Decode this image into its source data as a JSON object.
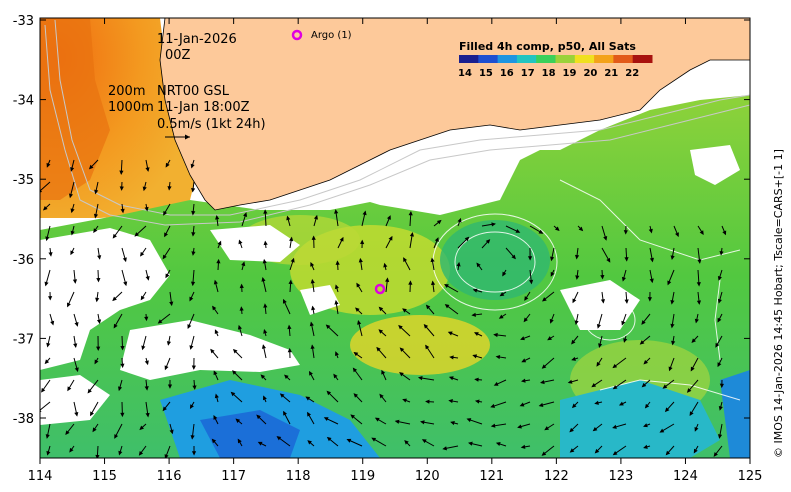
{
  "map": {
    "date": "11-Jan-2026",
    "time": "00Z",
    "contour_line1": "200m",
    "contour_line2": "1000m",
    "current_label": "NRT00 GSL",
    "current_time": "11-Jan 18:00Z",
    "scale_label": "0.5m/s (1kt 24h)",
    "argo_label": "Argo (1)",
    "colorbar_title": "Filled 4h comp, p50, All Sats",
    "colorbar_values": [
      "14",
      "15",
      "16",
      "17",
      "18",
      "19",
      "20",
      "21",
      "22"
    ],
    "colorbar_colors": [
      "#1a1f8f",
      "#1e4fd0",
      "#1e95e0",
      "#22c4c0",
      "#3bd05a",
      "#9bd23a",
      "#f0e020",
      "#f3a21a",
      "#e25a1a",
      "#a8120f"
    ],
    "credit": "© IMOS 14-Jan-2026 14:45 Hobart; Tscale=CARS+[-1 1]",
    "x_ticks": [
      "114",
      "115",
      "116",
      "117",
      "118",
      "119",
      "120",
      "121",
      "122",
      "123",
      "124",
      "125"
    ],
    "y_ticks": [
      "-33",
      "-34",
      "-35",
      "-36",
      "-37",
      "-38"
    ],
    "land_color": "#fdc99a",
    "argo_color": "#e000e0"
  }
}
